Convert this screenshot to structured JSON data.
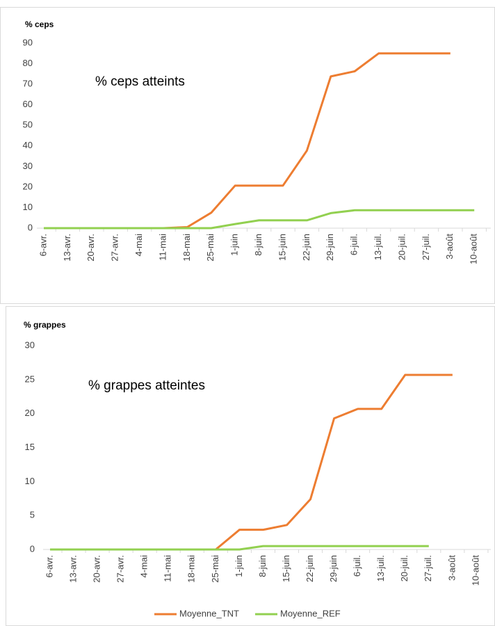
{
  "chart_data": [
    {
      "type": "line",
      "title": "% ceps",
      "annotation": "% ceps atteints",
      "categories": [
        "6-avr.",
        "13-avr.",
        "20-avr.",
        "27-avr.",
        "4-mai",
        "11-mai",
        "18-mai",
        "25-mai",
        "1-juin",
        "8-juin",
        "15-juin",
        "22-juin",
        "29-juin",
        "6-juil.",
        "13-juil.",
        "20-juil.",
        "27-juil.",
        "3-août",
        "10-août"
      ],
      "series": [
        {
          "color": "#ed7d31",
          "values": [
            0,
            0,
            0,
            0,
            0,
            0,
            0.5,
            7.5,
            20.7,
            20.7,
            20.7,
            37.7,
            73.8,
            76.3,
            85,
            85,
            85,
            85,
            null
          ]
        },
        {
          "color": "#92d050",
          "values": [
            0,
            0,
            0,
            0,
            0,
            0,
            0,
            0,
            2,
            3.8,
            3.8,
            3.8,
            7.3,
            8.7,
            8.7,
            8.7,
            8.7,
            8.7,
            8.7
          ]
        }
      ],
      "ylim": [
        0,
        90
      ],
      "yticks": [
        0,
        10,
        20,
        30,
        40,
        50,
        60,
        70,
        80,
        90
      ],
      "grid": false
    },
    {
      "type": "line",
      "title": "% grappes",
      "annotation": "% grappes atteintes",
      "categories": [
        "6-avr.",
        "13-avr.",
        "20-avr.",
        "27-avr.",
        "4-mai",
        "11-mai",
        "18-mai",
        "25-mai",
        "1-juin",
        "8-juin",
        "15-juin",
        "22-juin",
        "29-juin",
        "6-juil.",
        "13-juil.",
        "20-juil.",
        "27-juil.",
        "3-août",
        "10-août"
      ],
      "series": [
        {
          "name": "Moyenne_TNT",
          "color": "#ed7d31",
          "values": [
            0,
            0,
            0,
            0,
            0,
            0,
            0,
            0,
            2.9,
            2.9,
            3.6,
            7.4,
            19.3,
            20.7,
            20.7,
            25.7,
            25.7,
            25.7,
            null
          ]
        },
        {
          "name": "Moyenne_REF",
          "color": "#92d050",
          "values": [
            0,
            0,
            0,
            0,
            0,
            0,
            0,
            0,
            0,
            0.5,
            0.5,
            0.5,
            0.5,
            0.5,
            0.5,
            0.5,
            0.5,
            null,
            null
          ]
        }
      ],
      "ylim": [
        0,
        30
      ],
      "yticks": [
        0,
        5,
        10,
        15,
        20,
        25,
        30
      ],
      "grid": false,
      "legend": "bottom"
    }
  ]
}
